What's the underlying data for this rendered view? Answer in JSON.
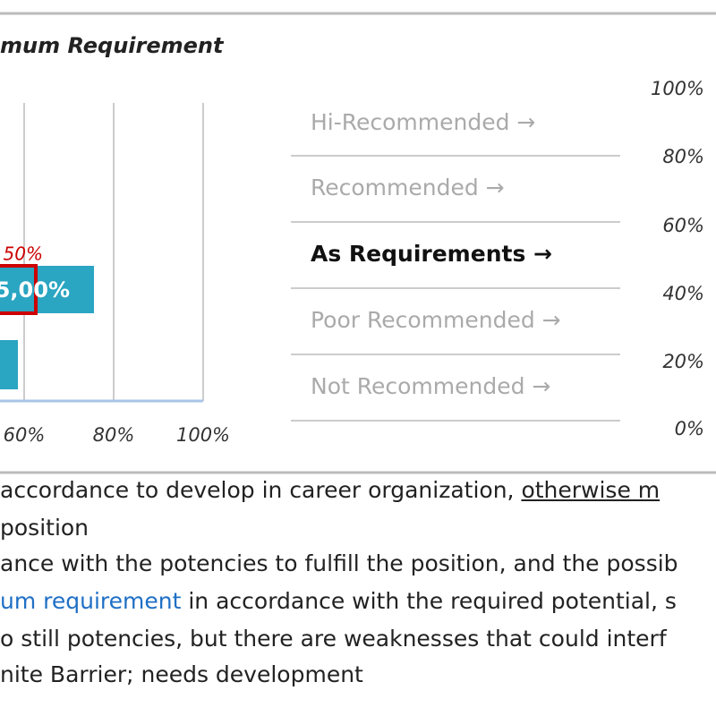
{
  "header": {
    "title": "mum Requirement"
  },
  "chart": {
    "x_tick_labels": [
      "60%",
      "80%",
      "100%"
    ],
    "bar_labels": [
      "50%",
      "5,00%"
    ]
  },
  "ratings": [
    "Hi-Recommended →",
    "Recommended →",
    "As Requirements →",
    "Poor Recommended →",
    "Not Recommended →"
  ],
  "scale_labels": [
    "100%",
    "80%",
    "60%",
    "40%",
    "20%",
    "0%"
  ],
  "body": {
    "lines": [
      [
        "accordance to develop in career organization, ",
        "otherwise m"
      ],
      [
        "position"
      ],
      [
        "ance with the potencies to fulfill the position, and the possib"
      ],
      [
        "um requirement",
        " in accordance with the required potential, s"
      ],
      [
        "o still potencies, but there are weaknesses that could interf"
      ],
      [
        "nite Barrier; needs development"
      ]
    ]
  }
}
